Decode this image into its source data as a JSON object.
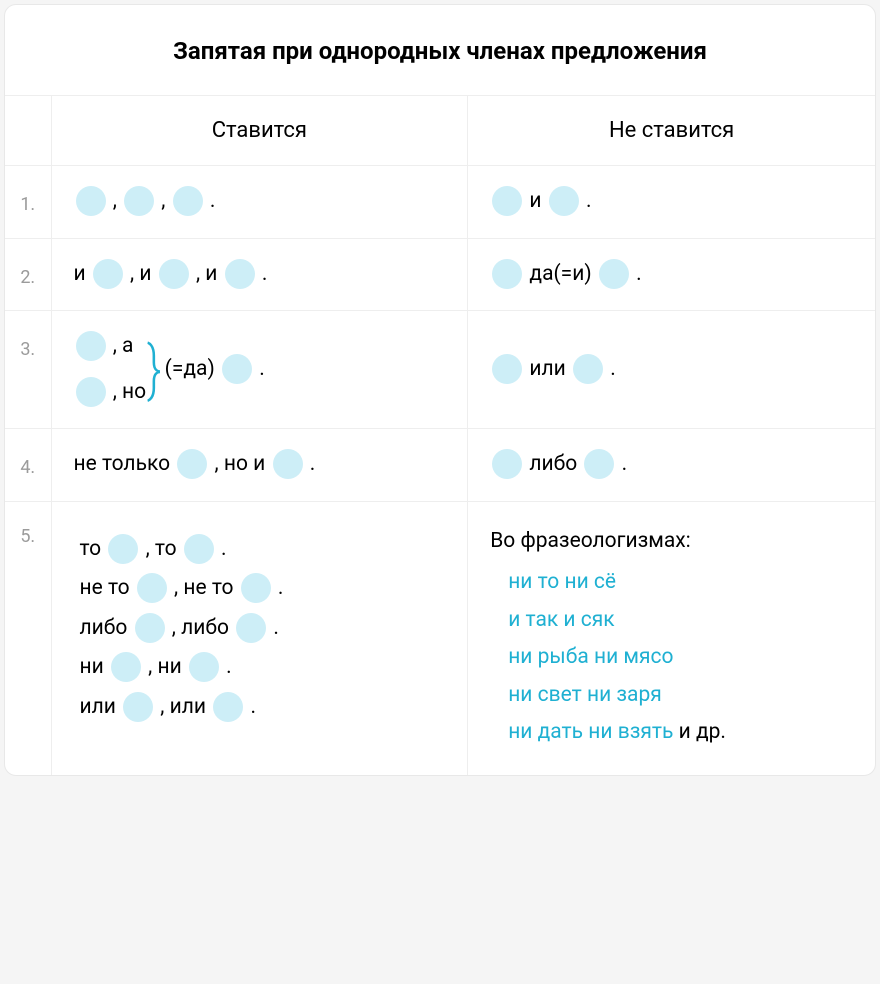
{
  "title": "Запятая при однородных членах предложения",
  "columns": {
    "num": "",
    "yes": "Ставится",
    "no": "Не ставится"
  },
  "rows": {
    "r1": {
      "num": "1.",
      "yes_parts": [
        " , ",
        " , ",
        " ."
      ],
      "no_parts": [
        " и ",
        " ."
      ]
    },
    "r2": {
      "num": "2.",
      "yes_pre": "и ",
      "yes_parts": [
        " , и ",
        " , и ",
        " ."
      ],
      "no_parts": [
        " да(=и) ",
        " ."
      ]
    },
    "r3": {
      "num": "3.",
      "line1_after": " , а",
      "line2_after": " , но",
      "right_pre": " (=да) ",
      "right_post": " .",
      "no_parts": [
        " или ",
        " ."
      ]
    },
    "r4": {
      "num": "4.",
      "yes_pre": "не только ",
      "yes_mid": " , но и ",
      "yes_end": " .",
      "no_parts": [
        " либо ",
        " ."
      ]
    },
    "r5": {
      "num": "5.",
      "yes": [
        {
          "pre": "то ",
          "mid": " , то ",
          "end": " ."
        },
        {
          "pre": "не то ",
          "mid": " , не то ",
          "end": " ."
        },
        {
          "pre": "либо ",
          "mid": " , либо ",
          "end": " ."
        },
        {
          "pre": "ни ",
          "mid": " , ни ",
          "end": " ."
        },
        {
          "pre": "или ",
          "mid": " , или ",
          "end": " ."
        }
      ],
      "no_title": "Во фразеологизмах:",
      "idioms": [
        "ни то ни сё",
        "и так и сяк",
        "ни рыба ни мясо",
        "ни свет ни заря"
      ],
      "idiom_last": "ни дать ни взять",
      "idiom_etc": " и др."
    }
  },
  "colors": {
    "dot": "#cdeef7",
    "accent": "#1fb0d2",
    "border": "#eeeeee",
    "num": "#9b9b9b"
  }
}
